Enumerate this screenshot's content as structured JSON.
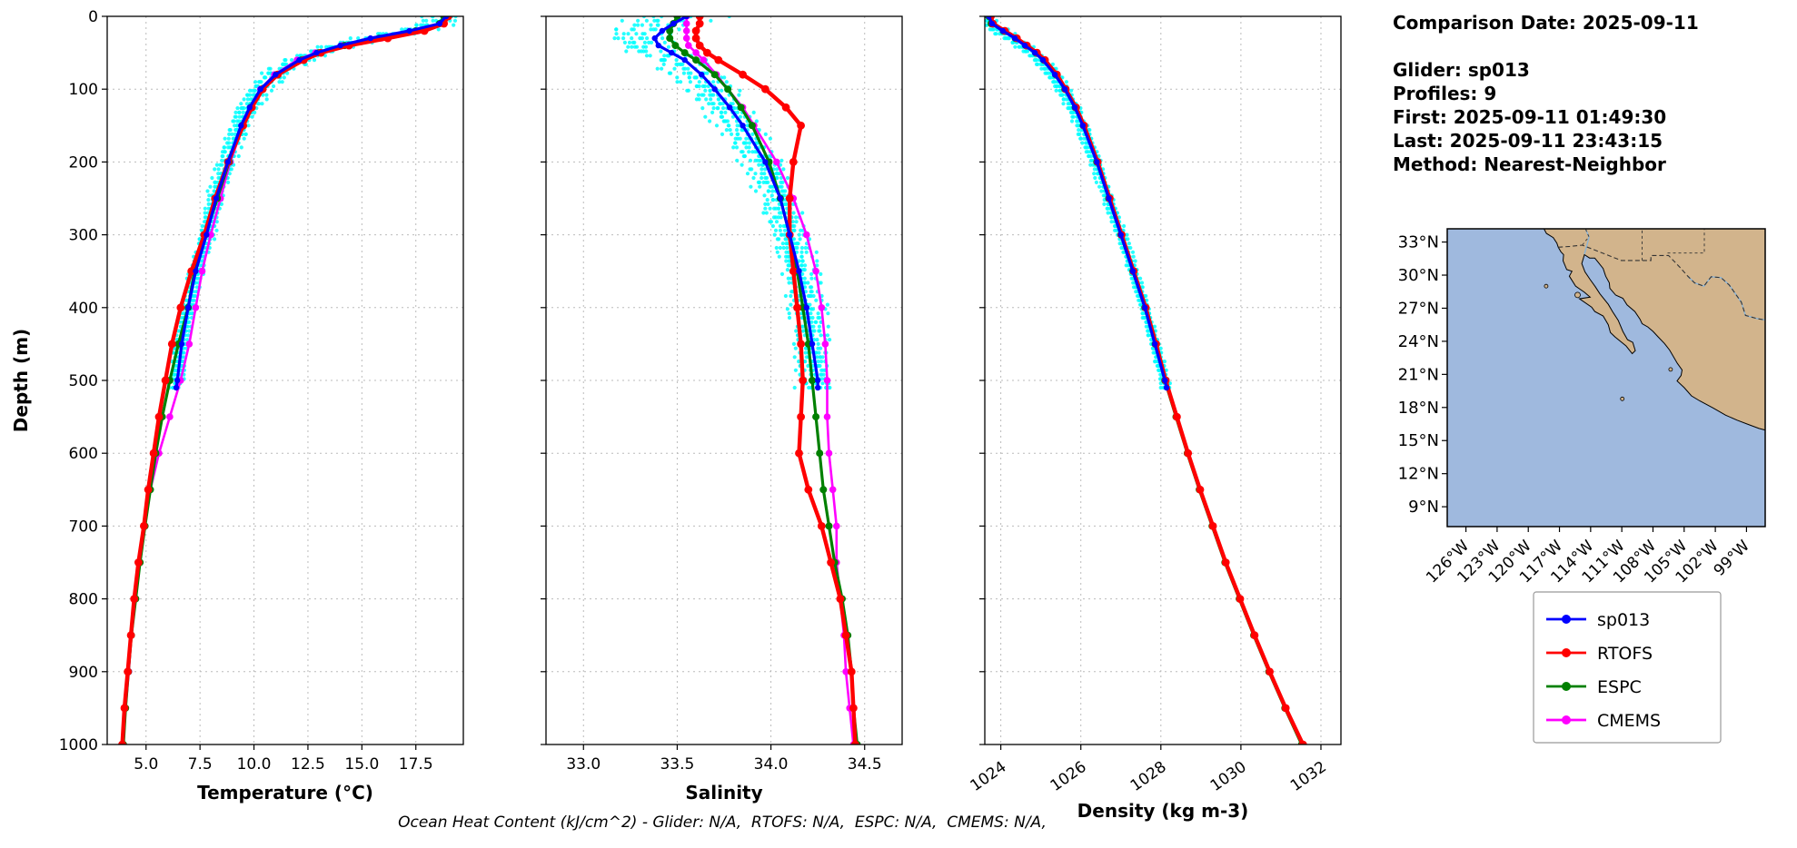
{
  "info_panel": {
    "comparison_date": "Comparison Date: 2025-09-11",
    "lines": [
      "Glider: sp013",
      "Profiles: 9",
      "First: 2025-09-11 01:49:30",
      "Last: 2025-09-11 23:43:15",
      "Method: Nearest-Neighbor"
    ]
  },
  "footer_note": "Ocean Heat Content (kJ/cm^2) - Glider: N/A,  RTOFS: N/A,  ESPC: N/A,  CMEMS: N/A,",
  "colors": {
    "sp013": "#0000FF",
    "RTOFS": "#FF0000",
    "ESPC": "#008000",
    "CMEMS": "#FF00FF",
    "glider_scatter": "#00FFFF",
    "land": "#D2B48C",
    "ocean": "#9FB9DE",
    "river": "#8AB4D8",
    "grid": "#BBBBBB"
  },
  "legend": {
    "entries": [
      {
        "label": "sp013",
        "color": "#0000FF"
      },
      {
        "label": "RTOFS",
        "color": "#FF0000"
      },
      {
        "label": "ESPC",
        "color": "#008000"
      },
      {
        "label": "CMEMS",
        "color": "#FF00FF"
      }
    ]
  },
  "depth_axis": {
    "label": "Depth (m)",
    "ticks": [
      0,
      100,
      200,
      300,
      400,
      500,
      600,
      700,
      800,
      900,
      1000
    ],
    "tick_labels": [
      "0",
      "100",
      "200",
      "300",
      "400",
      "500",
      "600",
      "700",
      "800",
      "900",
      "1000"
    ],
    "range": [
      0,
      1000
    ]
  },
  "map": {
    "lat_ticks": [
      {
        "label": "33°N",
        "value": 33
      },
      {
        "label": "30°N",
        "value": 30
      },
      {
        "label": "27°N",
        "value": 27
      },
      {
        "label": "24°N",
        "value": 24
      },
      {
        "label": "21°N",
        "value": 21
      },
      {
        "label": "18°N",
        "value": 18
      },
      {
        "label": "15°N",
        "value": 15
      },
      {
        "label": "12°N",
        "value": 12
      },
      {
        "label": "9°N",
        "value": 9
      }
    ],
    "lon_ticks": [
      {
        "label": "126°W",
        "value": -126
      },
      {
        "label": "123°W",
        "value": -123
      },
      {
        "label": "120°W",
        "value": -120
      },
      {
        "label": "117°W",
        "value": -117
      },
      {
        "label": "114°W",
        "value": -114
      },
      {
        "label": "111°W",
        "value": -111
      },
      {
        "label": "108°W",
        "value": -108
      },
      {
        "label": "105°W",
        "value": -105
      },
      {
        "label": "102°W",
        "value": -102
      },
      {
        "label": "99°W",
        "value": -99
      }
    ]
  },
  "chart_data": [
    {
      "type": "line",
      "title": "",
      "xlabel": "Temperature (°C)",
      "ylabel": "Depth (m)",
      "xlim": [
        3.2,
        19.7
      ],
      "ylim": [
        1000,
        0
      ],
      "xticks": [
        5.0,
        7.5,
        10.0,
        12.5,
        15.0,
        17.5
      ],
      "xtick_labels": [
        "5.0",
        "7.5",
        "10.0",
        "12.5",
        "15.0",
        "17.5"
      ],
      "xtick_rotation": 0,
      "grid": true,
      "legend_position": "none",
      "series": [
        {
          "name": "sp013",
          "color": "#0000FF",
          "depths": [
            0,
            10,
            20,
            30,
            40,
            50,
            60,
            80,
            100,
            125,
            150,
            200,
            250,
            300,
            350,
            400,
            450,
            500,
            510
          ],
          "values": [
            18.9,
            18.6,
            17.2,
            15.4,
            14.0,
            12.9,
            12.1,
            11.0,
            10.3,
            9.8,
            9.4,
            8.8,
            8.25,
            7.8,
            7.3,
            6.95,
            6.65,
            6.45,
            6.4
          ]
        },
        {
          "name": "RTOFS",
          "color": "#FF0000",
          "depths": [
            0,
            10,
            20,
            30,
            40,
            50,
            60,
            80,
            100,
            125,
            150,
            200,
            250,
            300,
            350,
            400,
            450,
            500,
            550,
            600,
            650,
            700,
            750,
            800,
            850,
            900,
            950,
            1000
          ],
          "values": [
            19.0,
            18.8,
            17.9,
            16.2,
            14.4,
            13.1,
            12.3,
            11.1,
            10.4,
            9.9,
            9.5,
            8.8,
            8.2,
            7.7,
            7.1,
            6.6,
            6.2,
            5.9,
            5.6,
            5.35,
            5.1,
            4.9,
            4.65,
            4.45,
            4.3,
            4.15,
            4.0,
            3.9
          ]
        },
        {
          "name": "ESPC",
          "color": "#008000",
          "depths": [
            0,
            10,
            20,
            30,
            40,
            50,
            60,
            80,
            100,
            125,
            150,
            200,
            250,
            300,
            350,
            400,
            450,
            500,
            550,
            600,
            650,
            700,
            750,
            800,
            850,
            900,
            950,
            1000
          ],
          "values": [
            18.8,
            18.6,
            17.5,
            15.8,
            14.2,
            13.0,
            12.2,
            11.05,
            10.35,
            9.85,
            9.45,
            8.85,
            8.3,
            7.75,
            7.25,
            6.95,
            6.5,
            6.1,
            5.75,
            5.45,
            5.2,
            4.95,
            4.72,
            4.52,
            4.32,
            4.18,
            4.05,
            3.95
          ]
        },
        {
          "name": "CMEMS",
          "color": "#FF00FF",
          "depths": [
            0,
            10,
            20,
            30,
            40,
            50,
            60,
            80,
            100,
            125,
            150,
            200,
            250,
            300,
            350,
            400,
            450,
            500,
            550,
            600,
            650,
            700,
            750,
            800,
            850,
            900,
            950,
            1000
          ],
          "values": [
            18.95,
            18.75,
            17.6,
            15.9,
            14.1,
            12.85,
            12.0,
            10.95,
            10.3,
            9.9,
            9.5,
            8.9,
            8.45,
            8.0,
            7.6,
            7.3,
            7.0,
            6.6,
            6.1,
            5.6,
            5.2,
            4.95,
            4.72,
            4.5,
            4.32,
            4.2,
            4.05,
            3.95
          ]
        }
      ],
      "scatter": {
        "name": "glider raw profiles",
        "color": "#00FFFF",
        "profiles": 9,
        "max_depth": 510,
        "amp_surface": 1.15,
        "amp_deep": 0.3,
        "bias_surface": -0.25,
        "decay": 110
      }
    },
    {
      "type": "line",
      "title": "",
      "xlabel": "Salinity",
      "ylabel": "Depth (m)",
      "xlim": [
        32.8,
        34.7
      ],
      "ylim": [
        1000,
        0
      ],
      "xticks": [
        33.0,
        33.5,
        34.0,
        34.5
      ],
      "xtick_labels": [
        "33.0",
        "33.5",
        "34.0",
        "34.5"
      ],
      "xtick_rotation": 0,
      "grid": true,
      "legend_position": "none",
      "series": [
        {
          "name": "sp013",
          "color": "#0000FF",
          "depths": [
            0,
            10,
            20,
            30,
            40,
            50,
            60,
            80,
            100,
            125,
            150,
            200,
            250,
            300,
            350,
            400,
            450,
            500,
            510
          ],
          "values": [
            33.55,
            33.48,
            33.42,
            33.38,
            33.4,
            33.47,
            33.54,
            33.63,
            33.7,
            33.78,
            33.85,
            33.97,
            34.05,
            34.1,
            34.15,
            34.19,
            34.22,
            34.25,
            34.25
          ]
        },
        {
          "name": "RTOFS",
          "color": "#FF0000",
          "depths": [
            0,
            10,
            20,
            30,
            40,
            50,
            60,
            80,
            100,
            125,
            150,
            200,
            250,
            300,
            350,
            400,
            450,
            500,
            550,
            600,
            650,
            700,
            750,
            800,
            850,
            900,
            950,
            1000
          ],
          "values": [
            33.62,
            33.62,
            33.6,
            33.6,
            33.62,
            33.66,
            33.72,
            33.85,
            33.97,
            34.08,
            34.16,
            34.12,
            34.1,
            34.1,
            34.12,
            34.14,
            34.16,
            34.17,
            34.16,
            34.15,
            34.2,
            34.27,
            34.32,
            34.37,
            34.4,
            34.43,
            34.44,
            34.45
          ]
        },
        {
          "name": "ESPC",
          "color": "#008000",
          "depths": [
            0,
            10,
            20,
            30,
            40,
            50,
            60,
            80,
            100,
            125,
            150,
            200,
            250,
            300,
            350,
            400,
            450,
            500,
            550,
            600,
            650,
            700,
            750,
            800,
            850,
            900,
            950,
            1000
          ],
          "values": [
            33.5,
            33.48,
            33.46,
            33.46,
            33.49,
            33.54,
            33.6,
            33.7,
            33.77,
            33.84,
            33.9,
            33.99,
            34.05,
            34.1,
            34.14,
            34.17,
            34.2,
            34.22,
            34.24,
            34.26,
            34.28,
            34.31,
            34.34,
            34.38,
            34.41,
            34.43,
            34.44,
            34.46
          ]
        },
        {
          "name": "CMEMS",
          "color": "#FF00FF",
          "depths": [
            0,
            10,
            20,
            30,
            40,
            50,
            60,
            80,
            100,
            125,
            150,
            200,
            250,
            300,
            350,
            400,
            450,
            500,
            550,
            600,
            650,
            700,
            750,
            800,
            850,
            900,
            950,
            1000
          ],
          "values": [
            33.55,
            33.55,
            33.55,
            33.55,
            33.56,
            33.6,
            33.64,
            33.71,
            33.77,
            33.85,
            33.91,
            34.03,
            34.12,
            34.19,
            34.24,
            34.27,
            34.29,
            34.3,
            34.3,
            34.31,
            34.33,
            34.35,
            34.35,
            34.37,
            34.39,
            34.4,
            34.42,
            34.44
          ]
        }
      ],
      "scatter": {
        "name": "glider raw profiles",
        "color": "#00FFFF",
        "profiles": 9,
        "max_depth": 510,
        "amp_surface": 0.27,
        "amp_deep": 0.1,
        "bias_surface": -0.1,
        "decay": 80
      }
    },
    {
      "type": "line",
      "title": "",
      "xlabel": "Density (kg m-3)",
      "ylabel": "Depth (m)",
      "xlim": [
        1023.6,
        1032.5
      ],
      "ylim": [
        1000,
        0
      ],
      "xticks": [
        1024,
        1026,
        1028,
        1030,
        1032
      ],
      "xtick_labels": [
        "1024",
        "1026",
        "1028",
        "1030",
        "1032"
      ],
      "xtick_rotation": 35,
      "grid": true,
      "legend_position": "none",
      "series": [
        {
          "name": "sp013",
          "color": "#0000FF",
          "depths": [
            0,
            10,
            20,
            30,
            40,
            50,
            60,
            80,
            100,
            125,
            150,
            200,
            250,
            300,
            350,
            400,
            450,
            500,
            510
          ],
          "values": [
            1023.7,
            1023.78,
            1024.05,
            1024.35,
            1024.6,
            1024.85,
            1025.05,
            1025.35,
            1025.6,
            1025.85,
            1026.05,
            1026.4,
            1026.7,
            1027.0,
            1027.3,
            1027.6,
            1027.85,
            1028.1,
            1028.14
          ]
        },
        {
          "name": "RTOFS",
          "color": "#FF0000",
          "depths": [
            0,
            10,
            20,
            30,
            40,
            50,
            60,
            80,
            100,
            125,
            150,
            200,
            250,
            300,
            350,
            400,
            450,
            500,
            550,
            600,
            650,
            700,
            750,
            800,
            850,
            900,
            950,
            1000
          ],
          "values": [
            1023.75,
            1023.8,
            1024.1,
            1024.4,
            1024.65,
            1024.9,
            1025.1,
            1025.4,
            1025.62,
            1025.88,
            1026.08,
            1026.42,
            1026.72,
            1027.02,
            1027.32,
            1027.62,
            1027.88,
            1028.12,
            1028.4,
            1028.68,
            1028.98,
            1029.3,
            1029.62,
            1029.98,
            1030.34,
            1030.72,
            1031.12,
            1031.55
          ]
        },
        {
          "name": "ESPC",
          "color": "#008000",
          "depths": [
            0,
            10,
            20,
            30,
            40,
            50,
            60,
            80,
            100,
            125,
            150,
            200,
            250,
            300,
            350,
            400,
            450,
            500,
            550,
            600,
            650,
            700,
            750,
            800,
            850,
            900,
            950,
            1000
          ],
          "values": [
            1023.7,
            1023.76,
            1024.06,
            1024.36,
            1024.62,
            1024.87,
            1025.07,
            1025.37,
            1025.6,
            1025.86,
            1026.06,
            1026.4,
            1026.7,
            1027.0,
            1027.3,
            1027.6,
            1027.86,
            1028.1,
            1028.38,
            1028.66,
            1028.96,
            1029.28,
            1029.6,
            1029.96,
            1030.32,
            1030.7,
            1031.1,
            1031.52
          ]
        },
        {
          "name": "CMEMS",
          "color": "#FF00FF",
          "depths": [
            0,
            10,
            20,
            30,
            40,
            50,
            60,
            80,
            100,
            125,
            150,
            200,
            250,
            300,
            350,
            400,
            450,
            500,
            550,
            600,
            650,
            700,
            750,
            800,
            850,
            900,
            950,
            1000
          ],
          "values": [
            1023.72,
            1023.78,
            1024.08,
            1024.38,
            1024.63,
            1024.88,
            1025.08,
            1025.38,
            1025.61,
            1025.87,
            1026.07,
            1026.41,
            1026.71,
            1027.01,
            1027.31,
            1027.61,
            1027.87,
            1028.11,
            1028.39,
            1028.67,
            1028.97,
            1029.29,
            1029.61,
            1029.97,
            1030.33,
            1030.71,
            1031.11,
            1031.53
          ]
        }
      ],
      "scatter": {
        "name": "glider raw profiles",
        "color": "#00FFFF",
        "profiles": 9,
        "max_depth": 510,
        "amp_surface": 0.3,
        "amp_deep": 0.12,
        "bias_surface": -0.15,
        "decay": 110
      }
    }
  ]
}
